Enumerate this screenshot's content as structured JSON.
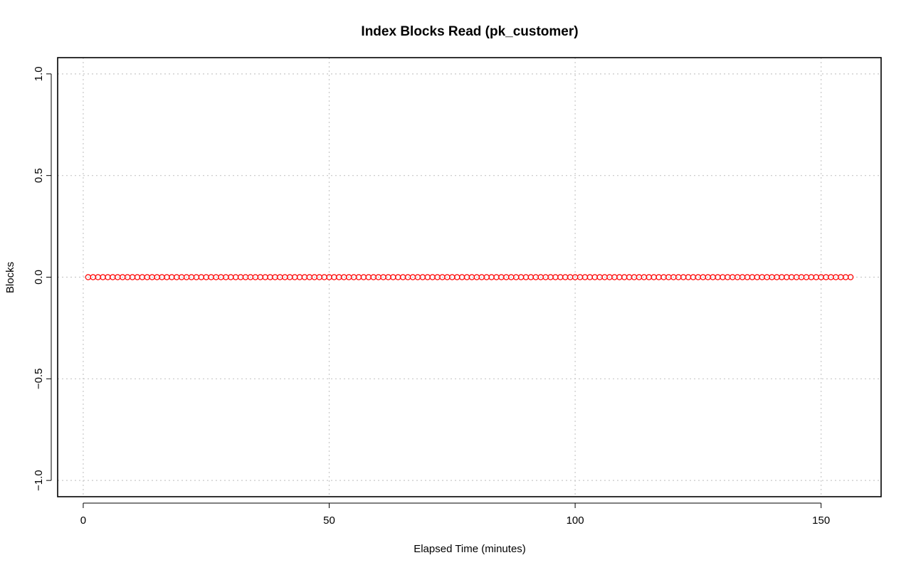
{
  "chart_data": {
    "type": "scatter",
    "title": "Index Blocks Read (pk_customer)",
    "xlabel": "Elapsed Time (minutes)",
    "ylabel": "Blocks",
    "xlim": [
      -5.2,
      162.2
    ],
    "ylim": [
      -1.08,
      1.08
    ],
    "x_ticks": [
      0,
      50,
      100,
      150
    ],
    "x_tick_labels": [
      "0",
      "50",
      "100",
      "150"
    ],
    "y_ticks": [
      -1.0,
      -0.5,
      0.0,
      0.5,
      1.0
    ],
    "y_tick_labels": [
      "−1.0",
      "−0.5",
      "0.0",
      "0.5",
      "1.0"
    ],
    "grid": true,
    "point_color": "#ff0000",
    "series": [
      {
        "x_start": 1,
        "x_end": 156,
        "x_step": 1,
        "y_constant": 0
      }
    ]
  }
}
